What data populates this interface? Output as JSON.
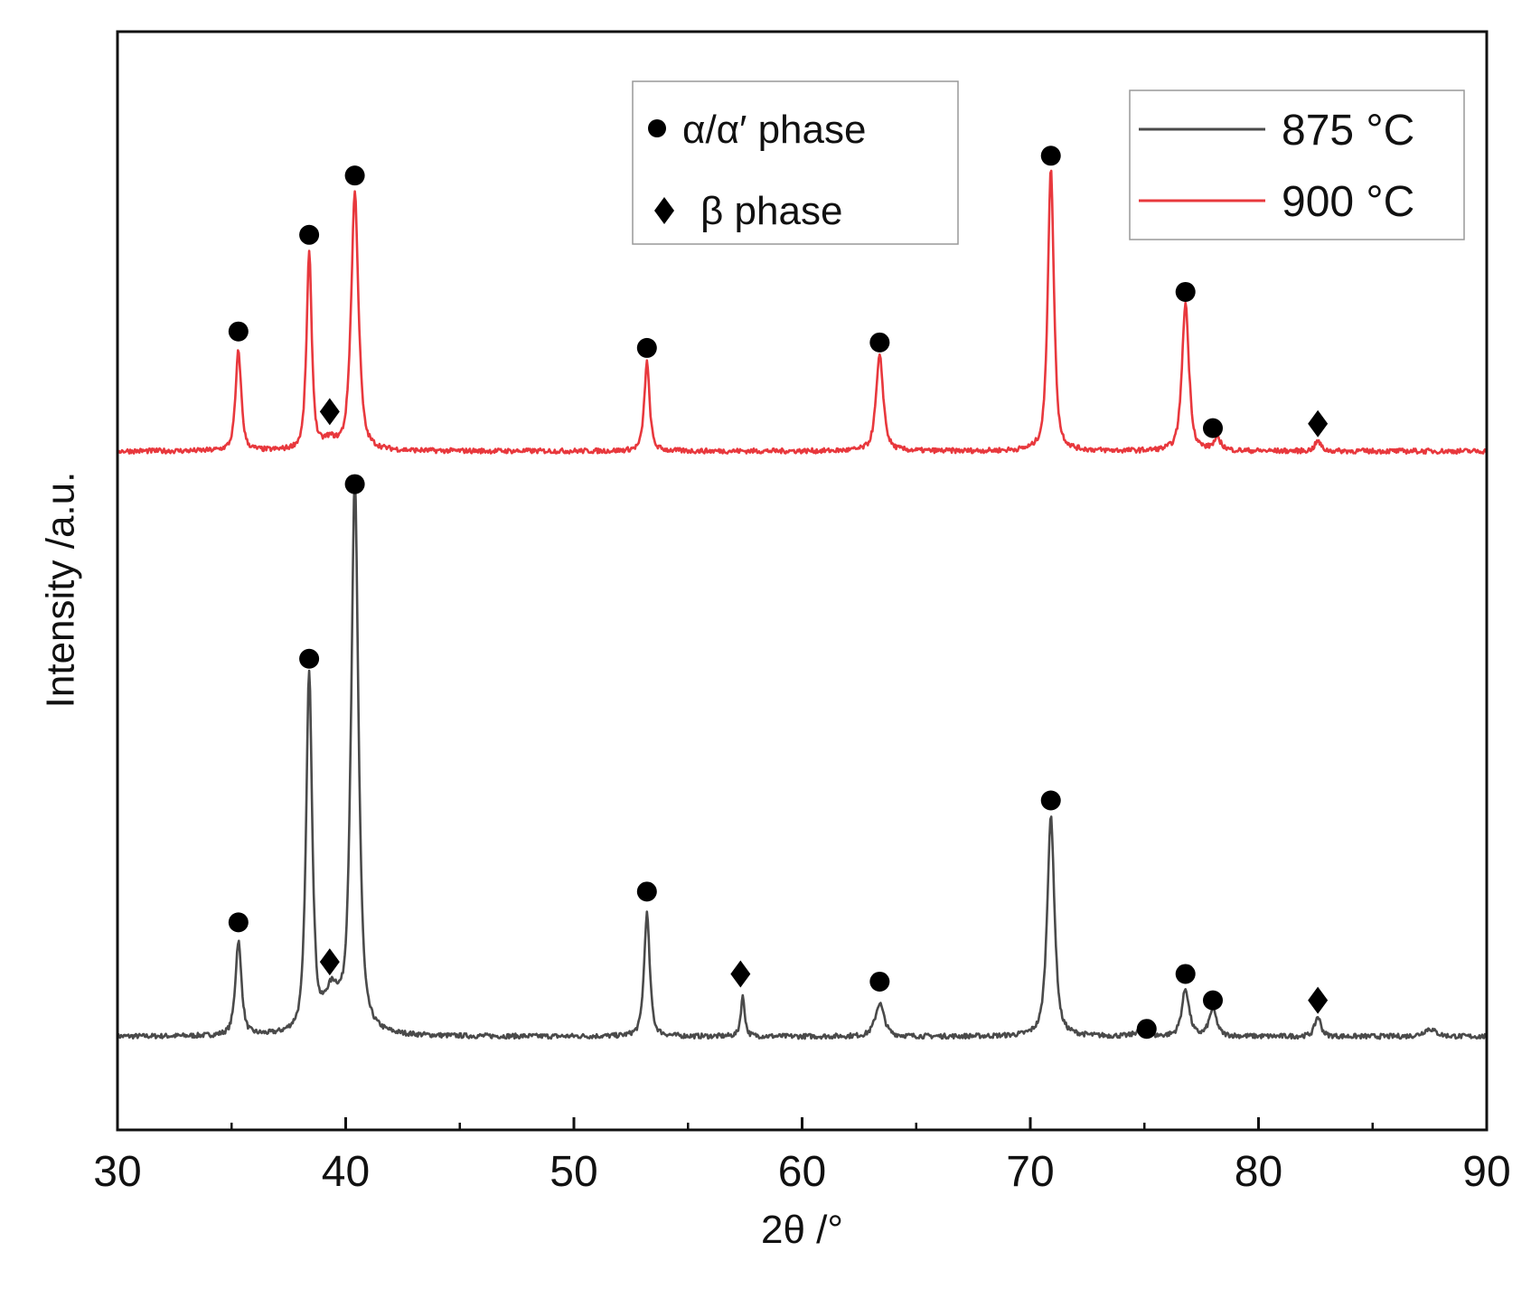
{
  "chart_data": {
    "type": "line",
    "title": "",
    "xlabel": "2θ /°",
    "ylabel": "Intensity /a.u.",
    "xlim": [
      30,
      90
    ],
    "xticks": [
      30,
      40,
      50,
      60,
      70,
      80,
      90
    ],
    "x_minor_step": 5,
    "y_units": "relative intensity (a.u.), 900 °C pattern offset vertically above the 875 °C pattern",
    "ylim": [
      0,
      100
    ],
    "series": [
      {
        "name": "875 °C",
        "color": "#4a4a4a",
        "baseline": 8.5,
        "peaks": [
          {
            "x": 35.3,
            "height": 8.6,
            "width": 0.15
          },
          {
            "x": 38.4,
            "height": 32.8,
            "width": 0.15
          },
          {
            "x": 39.4,
            "height": 3.5,
            "width": 0.4
          },
          {
            "x": 40.4,
            "height": 50.2,
            "width": 0.18
          },
          {
            "x": 53.2,
            "height": 11.2,
            "width": 0.14
          },
          {
            "x": 57.4,
            "height": 3.6,
            "width": 0.1
          },
          {
            "x": 63.4,
            "height": 3.0,
            "width": 0.22
          },
          {
            "x": 70.9,
            "height": 20.0,
            "width": 0.18
          },
          {
            "x": 74.8,
            "height": 0.6,
            "width": 0.2
          },
          {
            "x": 76.8,
            "height": 4.3,
            "width": 0.18
          },
          {
            "x": 78.0,
            "height": 2.5,
            "width": 0.18
          },
          {
            "x": 82.6,
            "height": 1.8,
            "width": 0.15
          },
          {
            "x": 87.5,
            "height": 0.7,
            "width": 0.3
          }
        ]
      },
      {
        "name": "900 °C",
        "color": "#e8383d",
        "baseline": 61.8,
        "peaks": [
          {
            "x": 35.3,
            "height": 9.1,
            "width": 0.14
          },
          {
            "x": 38.4,
            "height": 17.9,
            "width": 0.13
          },
          {
            "x": 39.3,
            "height": 0.8,
            "width": 0.3
          },
          {
            "x": 40.4,
            "height": 23.5,
            "width": 0.18
          },
          {
            "x": 53.2,
            "height": 8.1,
            "width": 0.13
          },
          {
            "x": 63.4,
            "height": 8.6,
            "width": 0.18
          },
          {
            "x": 70.9,
            "height": 25.8,
            "width": 0.15
          },
          {
            "x": 76.8,
            "height": 13.5,
            "width": 0.17
          },
          {
            "x": 78.2,
            "height": 1.0,
            "width": 0.2
          },
          {
            "x": 82.6,
            "height": 0.9,
            "width": 0.15
          }
        ]
      }
    ],
    "phase_markers": [
      {
        "series": "900 °C",
        "phase": "alpha",
        "x": 35.3,
        "y": 72.7
      },
      {
        "series": "900 °C",
        "phase": "alpha",
        "x": 38.4,
        "y": 81.5
      },
      {
        "series": "900 °C",
        "phase": "beta",
        "x": 39.3,
        "y": 65.4
      },
      {
        "series": "900 °C",
        "phase": "alpha",
        "x": 40.4,
        "y": 86.9
      },
      {
        "series": "900 °C",
        "phase": "alpha",
        "x": 53.2,
        "y": 71.2
      },
      {
        "series": "900 °C",
        "phase": "alpha",
        "x": 63.4,
        "y": 71.7
      },
      {
        "series": "900 °C",
        "phase": "alpha",
        "x": 70.9,
        "y": 88.7
      },
      {
        "series": "900 °C",
        "phase": "alpha",
        "x": 76.8,
        "y": 76.3
      },
      {
        "series": "900 °C",
        "phase": "alpha",
        "x": 78.0,
        "y": 63.9
      },
      {
        "series": "900 °C",
        "phase": "beta",
        "x": 82.6,
        "y": 64.3
      },
      {
        "series": "875 °C",
        "phase": "alpha",
        "x": 35.3,
        "y": 18.9
      },
      {
        "series": "875 °C",
        "phase": "alpha",
        "x": 38.4,
        "y": 42.9
      },
      {
        "series": "875 °C",
        "phase": "beta",
        "x": 39.3,
        "y": 15.3
      },
      {
        "series": "875 °C",
        "phase": "alpha",
        "x": 40.4,
        "y": 58.8
      },
      {
        "series": "875 °C",
        "phase": "alpha",
        "x": 53.2,
        "y": 21.7
      },
      {
        "series": "875 °C",
        "phase": "beta",
        "x": 57.3,
        "y": 14.2
      },
      {
        "series": "875 °C",
        "phase": "alpha",
        "x": 63.4,
        "y": 13.5
      },
      {
        "series": "875 °C",
        "phase": "alpha",
        "x": 70.9,
        "y": 30.0
      },
      {
        "series": "875 °C",
        "phase": "alpha",
        "x": 75.1,
        "y": 9.2
      },
      {
        "series": "875 °C",
        "phase": "alpha",
        "x": 76.8,
        "y": 14.2
      },
      {
        "series": "875 °C",
        "phase": "alpha",
        "x": 78.0,
        "y": 11.8
      },
      {
        "series": "875 °C",
        "phase": "beta",
        "x": 82.6,
        "y": 11.8
      }
    ],
    "phase_legend": {
      "placement": "top-center",
      "entries": [
        {
          "symbol": "circle",
          "label": "α/α′ phase"
        },
        {
          "symbol": "diamond",
          "label": "β phase"
        }
      ]
    },
    "series_legend": {
      "placement": "top-right"
    }
  }
}
